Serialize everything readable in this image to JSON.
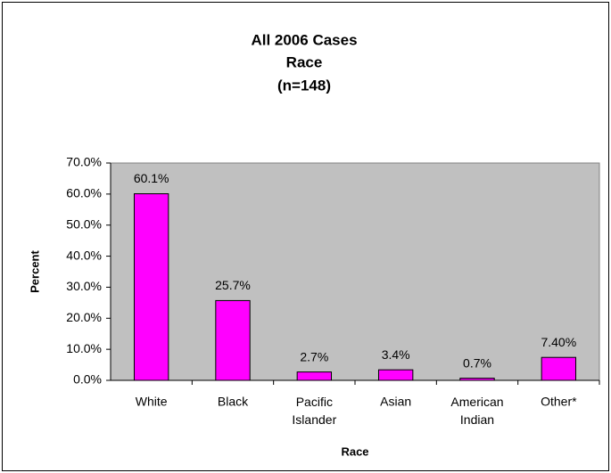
{
  "chart_data": {
    "type": "bar",
    "title": [
      "All 2006 Cases",
      "Race",
      "(n=148)"
    ],
    "x_label": "Race",
    "y_label": "Percent",
    "categories": [
      "White",
      "Black",
      "Pacific Islander",
      "Asian",
      "American Indian",
      "Other*"
    ],
    "values": [
      60.1,
      25.7,
      2.7,
      3.4,
      0.7,
      7.4
    ],
    "value_labels": [
      "60.1%",
      "25.7%",
      "2.7%",
      "3.4%",
      "0.7%",
      "7.40%"
    ],
    "color": "#ff00ff",
    "ylim": [
      0,
      70
    ],
    "yticks": [
      {
        "value": 0,
        "label": "0.0%"
      },
      {
        "value": 10,
        "label": "10.0%"
      },
      {
        "value": 20,
        "label": "20.0%"
      },
      {
        "value": 30,
        "label": "30.0%"
      },
      {
        "value": 40,
        "label": "40.0%"
      },
      {
        "value": 50,
        "label": "50.0%"
      },
      {
        "value": 60,
        "label": "60.0%"
      },
      {
        "value": 70,
        "label": "70.0%"
      }
    ],
    "grid": false
  }
}
